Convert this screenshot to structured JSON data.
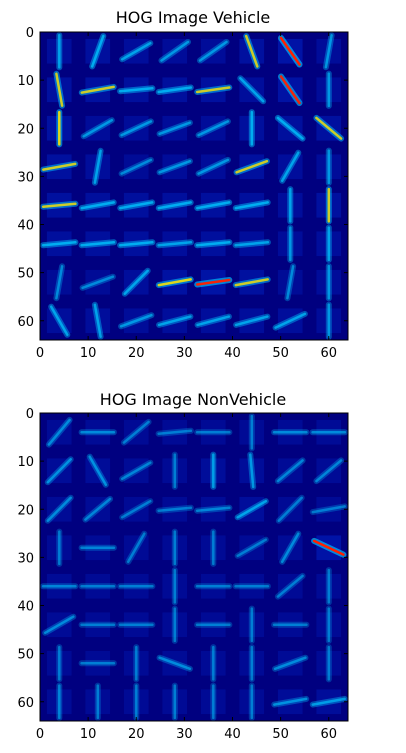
{
  "colors": {
    "background": "#000080",
    "cell_glow": "#0020c0",
    "stroke_low": "#00c8ff",
    "stroke_mid": "#ffe600",
    "stroke_high": "#ff2000",
    "frame": "#000000"
  },
  "chart_data": [
    {
      "type": "heatmap",
      "title": "HOG Image Vehicle",
      "colormap": "jet",
      "xlim": [
        0,
        64
      ],
      "ylim": [
        64,
        0
      ],
      "xticks": [
        "0",
        "10",
        "20",
        "30",
        "40",
        "50",
        "60"
      ],
      "yticks": [
        "0",
        "10",
        "20",
        "30",
        "40",
        "50",
        "60"
      ],
      "cells_per_side": 8,
      "pixels_per_cell": 8,
      "cells": [
        [
          [
            90,
            0.5
          ],
          [
            70,
            0.6
          ],
          [
            30,
            0.5
          ],
          [
            35,
            0.4
          ],
          [
            35,
            0.4
          ],
          [
            110,
            0.7
          ],
          [
            125,
            1.0
          ],
          [
            80,
            0.4
          ]
        ],
        [
          [
            100,
            0.7
          ],
          [
            10,
            0.7
          ],
          [
            5,
            0.6
          ],
          [
            8,
            0.6
          ],
          [
            8,
            0.7
          ],
          [
            135,
            0.5
          ],
          [
            125,
            0.9
          ],
          [
            90,
            0.4
          ]
        ],
        [
          [
            90,
            0.8
          ],
          [
            30,
            0.4
          ],
          [
            25,
            0.4
          ],
          [
            20,
            0.4
          ],
          [
            25,
            0.4
          ],
          [
            90,
            0.6
          ],
          [
            140,
            0.6
          ],
          [
            140,
            0.7
          ]
        ],
        [
          [
            10,
            0.7
          ],
          [
            80,
            0.5
          ],
          [
            25,
            0.3
          ],
          [
            20,
            0.4
          ],
          [
            25,
            0.4
          ],
          [
            20,
            0.7
          ],
          [
            60,
            0.5
          ],
          [
            90,
            0.4
          ]
        ],
        [
          [
            5,
            0.7
          ],
          [
            10,
            0.6
          ],
          [
            10,
            0.6
          ],
          [
            10,
            0.6
          ],
          [
            10,
            0.6
          ],
          [
            10,
            0.6
          ],
          [
            90,
            0.5
          ],
          [
            90,
            0.7
          ]
        ],
        [
          [
            5,
            0.6
          ],
          [
            5,
            0.6
          ],
          [
            5,
            0.6
          ],
          [
            5,
            0.5
          ],
          [
            5,
            0.6
          ],
          [
            5,
            0.5
          ],
          [
            90,
            0.4
          ],
          [
            90,
            0.5
          ]
        ],
        [
          [
            80,
            0.3
          ],
          [
            20,
            0.3
          ],
          [
            45,
            0.5
          ],
          [
            10,
            0.8
          ],
          [
            8,
            0.95
          ],
          [
            10,
            0.7
          ],
          [
            80,
            0.3
          ],
          [
            90,
            0.4
          ]
        ],
        [
          [
            120,
            0.5
          ],
          [
            100,
            0.5
          ],
          [
            20,
            0.4
          ],
          [
            15,
            0.5
          ],
          [
            15,
            0.5
          ],
          [
            15,
            0.5
          ],
          [
            25,
            0.5
          ],
          [
            90,
            0.4
          ]
        ]
      ]
    },
    {
      "type": "heatmap",
      "title": "HOG Image NonVehicle",
      "colormap": "jet",
      "xlim": [
        0,
        64
      ],
      "ylim": [
        64,
        0
      ],
      "xticks": [
        "0",
        "10",
        "20",
        "30",
        "40",
        "50",
        "60"
      ],
      "yticks": [
        "0",
        "10",
        "20",
        "30",
        "40",
        "50",
        "60"
      ],
      "cells_per_side": 8,
      "pixels_per_cell": 8,
      "cells": [
        [
          [
            50,
            0.3
          ],
          [
            0,
            0.3
          ],
          [
            40,
            0.2
          ],
          [
            5,
            0.2
          ],
          [
            0,
            0.2
          ],
          [
            90,
            0.2
          ],
          [
            0,
            0.3
          ],
          [
            0,
            0.3
          ]
        ],
        [
          [
            45,
            0.35
          ],
          [
            120,
            0.35
          ],
          [
            30,
            0.25
          ],
          [
            90,
            0.2
          ],
          [
            90,
            0.45
          ],
          [
            95,
            0.4
          ],
          [
            40,
            0.25
          ],
          [
            40,
            0.25
          ]
        ],
        [
          [
            45,
            0.3
          ],
          [
            40,
            0.25
          ],
          [
            30,
            0.2
          ],
          [
            5,
            0.2
          ],
          [
            5,
            0.25
          ],
          [
            30,
            0.5
          ],
          [
            45,
            0.2
          ],
          [
            10,
            0.2
          ]
        ],
        [
          [
            90,
            0.2
          ],
          [
            0,
            0.25
          ],
          [
            60,
            0.2
          ],
          [
            90,
            0.2
          ],
          [
            90,
            0.2
          ],
          [
            30,
            0.2
          ],
          [
            60,
            0.3
          ],
          [
            155,
            1.0
          ]
        ],
        [
          [
            0,
            0.25
          ],
          [
            0,
            0.2
          ],
          [
            0,
            0.2
          ],
          [
            90,
            0.2
          ],
          [
            0,
            0.2
          ],
          [
            0,
            0.2
          ],
          [
            40,
            0.2
          ],
          [
            90,
            0.2
          ]
        ],
        [
          [
            30,
            0.3
          ],
          [
            0,
            0.2
          ],
          [
            0,
            0.2
          ],
          [
            90,
            0.2
          ],
          [
            0,
            0.2
          ],
          [
            90,
            0.2
          ],
          [
            0,
            0.2
          ],
          [
            90,
            0.2
          ]
        ],
        [
          [
            90,
            0.2
          ],
          [
            0,
            0.2
          ],
          [
            90,
            0.2
          ],
          [
            160,
            0.3
          ],
          [
            90,
            0.2
          ],
          [
            90,
            0.2
          ],
          [
            20,
            0.3
          ],
          [
            90,
            0.2
          ]
        ],
        [
          [
            90,
            0.25
          ],
          [
            90,
            0.2
          ],
          [
            90,
            0.2
          ],
          [
            90,
            0.2
          ],
          [
            90,
            0.2
          ],
          [
            90,
            0.2
          ],
          [
            10,
            0.35
          ],
          [
            10,
            0.45
          ]
        ]
      ]
    }
  ]
}
